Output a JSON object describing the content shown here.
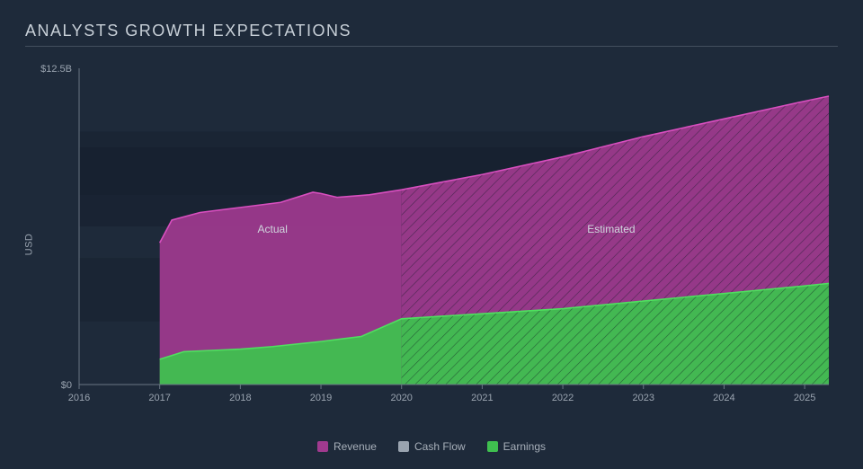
{
  "title": "ANALYSTS GROWTH EXPECTATIONS",
  "ylabel": "USD",
  "ymax_label": "$12.5B",
  "ymin_label": "$0",
  "ymax_value": 12.5,
  "background_color": "#1e2a3a",
  "plot_bg_inner": "#16202e",
  "grid_color": "#2a3646",
  "axis_color": "#6a7684",
  "x_years": [
    2016,
    2017,
    2018,
    2019,
    2020,
    2021,
    2022,
    2023,
    2024,
    2025
  ],
  "x_domain": [
    2016,
    2025.3
  ],
  "actual_x_end": 2020,
  "series": {
    "revenue": {
      "label": "Revenue",
      "color": "#a03a8f",
      "stroke": "#d84fbf",
      "points": [
        {
          "x": 2017.0,
          "y": 5.6
        },
        {
          "x": 2017.15,
          "y": 6.5
        },
        {
          "x": 2017.5,
          "y": 6.8
        },
        {
          "x": 2018.0,
          "y": 7.0
        },
        {
          "x": 2018.5,
          "y": 7.2
        },
        {
          "x": 2018.9,
          "y": 7.6
        },
        {
          "x": 2019.0,
          "y": 7.55
        },
        {
          "x": 2019.2,
          "y": 7.4
        },
        {
          "x": 2019.6,
          "y": 7.5
        },
        {
          "x": 2020.0,
          "y": 7.7
        },
        {
          "x": 2020.5,
          "y": 8.0
        },
        {
          "x": 2021.0,
          "y": 8.3
        },
        {
          "x": 2022.0,
          "y": 9.0
        },
        {
          "x": 2023.0,
          "y": 9.8
        },
        {
          "x": 2024.0,
          "y": 10.5
        },
        {
          "x": 2025.0,
          "y": 11.2
        },
        {
          "x": 2025.3,
          "y": 11.4
        }
      ]
    },
    "cashflow": {
      "label": "Cash Flow",
      "color": "#9aa4b0",
      "stroke": "#9aa4b0",
      "points": []
    },
    "earnings": {
      "label": "Earnings",
      "color": "#3fbf4f",
      "stroke": "#4fe05f",
      "points": [
        {
          "x": 2017.0,
          "y": 1.0
        },
        {
          "x": 2017.3,
          "y": 1.3
        },
        {
          "x": 2018.0,
          "y": 1.4
        },
        {
          "x": 2018.4,
          "y": 1.5
        },
        {
          "x": 2019.0,
          "y": 1.7
        },
        {
          "x": 2019.5,
          "y": 1.9
        },
        {
          "x": 2020.0,
          "y": 2.6
        },
        {
          "x": 2020.5,
          "y": 2.7
        },
        {
          "x": 2021.0,
          "y": 2.8
        },
        {
          "x": 2022.0,
          "y": 3.0
        },
        {
          "x": 2023.0,
          "y": 3.3
        },
        {
          "x": 2024.0,
          "y": 3.6
        },
        {
          "x": 2025.0,
          "y": 3.9
        },
        {
          "x": 2025.3,
          "y": 4.0
        }
      ]
    }
  },
  "region_labels": {
    "actual": "Actual",
    "estimated": "Estimated"
  },
  "legend_order": [
    "revenue",
    "cashflow",
    "earnings"
  ]
}
